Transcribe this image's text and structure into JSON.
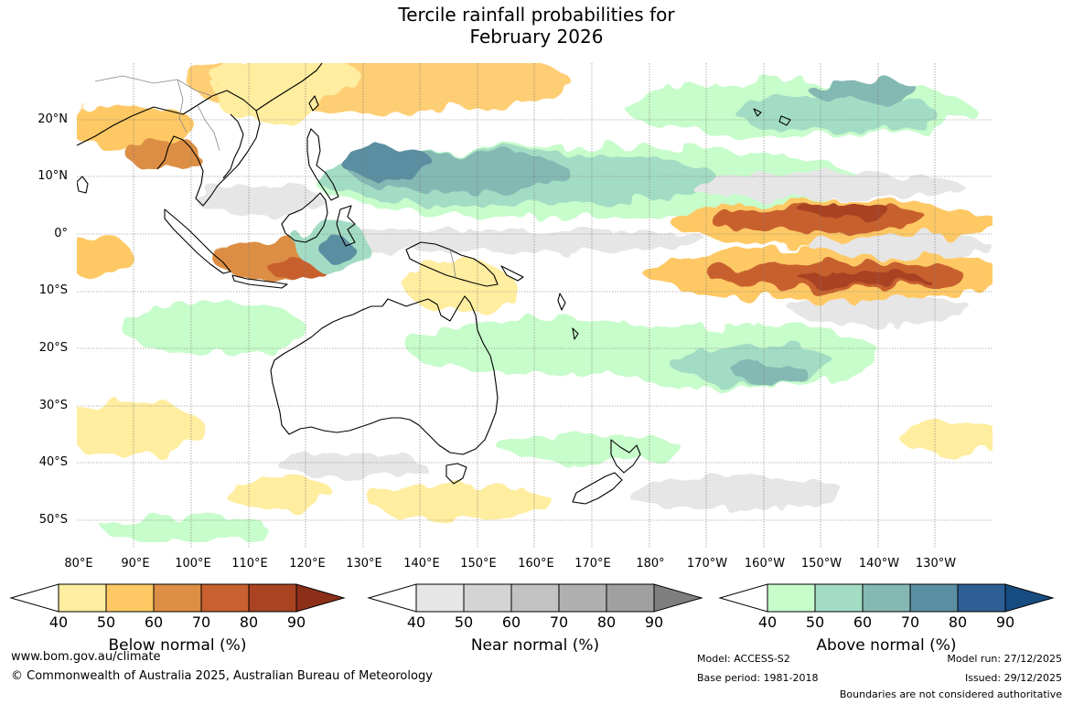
{
  "title": {
    "line1": "Tercile rainfall probabilities for",
    "line2": "February 2026"
  },
  "latitude_labels": [
    "20°N",
    "10°N",
    "0°",
    "10°S",
    "20°S",
    "30°S",
    "40°S",
    "50°S"
  ],
  "longitude_labels": [
    "80°E",
    "90°E",
    "100°E",
    "110°E",
    "120°E",
    "130°E",
    "140°E",
    "150°E",
    "160°E",
    "170°E",
    "180°",
    "170°W",
    "160°W",
    "150°W",
    "140°W",
    "130°W"
  ],
  "legends": [
    {
      "title": "Below normal (%)",
      "ticks": [
        "40",
        "50",
        "60",
        "70",
        "80",
        "90"
      ],
      "colors": [
        "#ffeda0",
        "#fec965",
        "#dc8e45",
        "#c8602f",
        "#a94322",
        "#8c2f19"
      ]
    },
    {
      "title": "Near normal (%)",
      "ticks": [
        "40",
        "50",
        "60",
        "70",
        "80",
        "90"
      ],
      "colors": [
        "#e6e6e6",
        "#d4d4d4",
        "#c2c2c2",
        "#b0b0b0",
        "#a0a0a0",
        "#7f7f7f"
      ]
    },
    {
      "title": "Above normal (%)",
      "ticks": [
        "40",
        "50",
        "60",
        "70",
        "80",
        "90"
      ],
      "colors": [
        "#c7fccb",
        "#a3dcc4",
        "#84b8b3",
        "#5a8fa1",
        "#2d5f94",
        "#174c80"
      ]
    }
  ],
  "footer": {
    "website": "www.bom.gov.au/climate",
    "copyright": "© Commonwealth of Australia 2025, Australian Bureau of Meteorology",
    "model": "Model: ACCESS-S2",
    "base_period": "Base period: 1981-2018",
    "model_run": "Model run: 27/12/2025",
    "issued": "Issued: 29/12/2025",
    "disclaimer": "Boundaries are not considered authoritative"
  }
}
